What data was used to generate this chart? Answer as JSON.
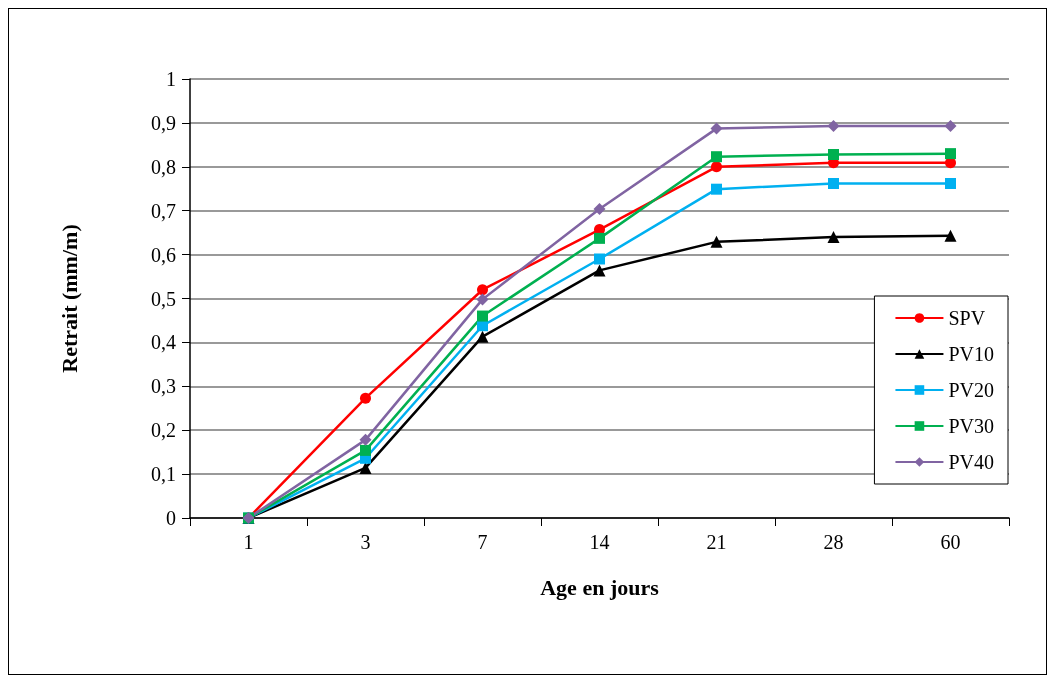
{
  "chart_data": {
    "type": "line",
    "xlabel": "Age en jours",
    "ylabel": "Retrait (mm/m)",
    "categories": [
      "1",
      "3",
      "7",
      "14",
      "21",
      "28",
      "60"
    ],
    "ylim": [
      0,
      1
    ],
    "yticks": [
      0,
      {
        "value": 0.1,
        "label": "0,1"
      },
      {
        "value": 0.2,
        "label": "0,2"
      },
      {
        "value": 0.3,
        "label": "0,3"
      },
      {
        "value": 0.4,
        "label": "0,4"
      },
      {
        "value": 0.5,
        "label": "0,5"
      },
      {
        "value": 0.6,
        "label": "0,6"
      },
      {
        "value": 0.7,
        "label": "0,7"
      },
      {
        "value": 0.8,
        "label": "0,8"
      },
      {
        "value": 0.9,
        "label": "0,9"
      },
      1
    ],
    "grid": "y",
    "legend": "right",
    "line_style": "solid",
    "series": [
      {
        "name": "SPV",
        "color": "#ff0000",
        "marker": "circle",
        "values": [
          0,
          0.273,
          0.52,
          0.657,
          0.8,
          0.809,
          0.809
        ]
      },
      {
        "name": "PV10",
        "color": "#000000",
        "marker": "triangle",
        "values": [
          0,
          0.114,
          0.413,
          0.564,
          0.629,
          0.64,
          0.643
        ]
      },
      {
        "name": "PV20",
        "color": "#00b0f0",
        "marker": "square",
        "values": [
          0,
          0.136,
          0.438,
          0.59,
          0.749,
          0.762,
          0.762
        ]
      },
      {
        "name": "PV30",
        "color": "#00b050",
        "marker": "square",
        "values": [
          0,
          0.154,
          0.46,
          0.637,
          0.823,
          0.828,
          0.83
        ]
      },
      {
        "name": "PV40",
        "color": "#8064a2",
        "marker": "diamond",
        "values": [
          0,
          0.178,
          0.498,
          0.704,
          0.887,
          0.893,
          0.893
        ]
      }
    ]
  }
}
